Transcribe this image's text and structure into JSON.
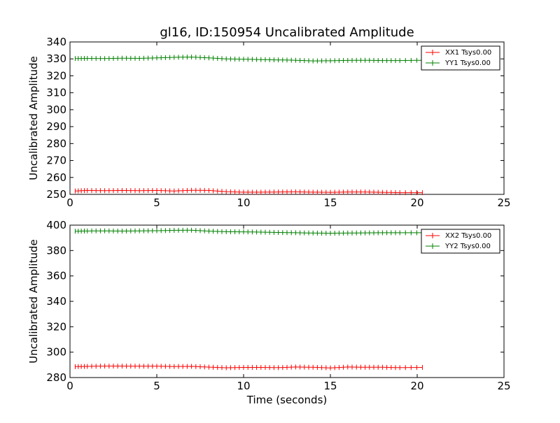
{
  "chart_data": [
    {
      "type": "line",
      "title": "gl16, ID:150954 Uncalibrated Amplitude",
      "xlabel": "",
      "ylabel": "Uncalibrated Amplitude",
      "xlim": [
        0,
        25
      ],
      "ylim": [
        250,
        340
      ],
      "xticks": [
        0,
        5,
        10,
        15,
        20,
        25
      ],
      "yticks": [
        250,
        260,
        270,
        280,
        290,
        300,
        310,
        320,
        330,
        340
      ],
      "legend_position": "top-right",
      "series": [
        {
          "name": "XX1 Tsys0.00",
          "color": "#ff0000",
          "x": [
            0.3,
            1.0,
            2.0,
            3.0,
            4.0,
            5.0,
            6.0,
            7.0,
            8.0,
            9.0,
            10.0,
            11.0,
            12.0,
            13.0,
            14.0,
            15.0,
            16.0,
            17.0,
            18.0,
            19.0,
            20.3
          ],
          "y": [
            252.0,
            252.3,
            252.2,
            252.3,
            252.2,
            252.3,
            252.0,
            252.4,
            252.3,
            251.6,
            251.3,
            251.3,
            251.4,
            251.5,
            251.3,
            251.2,
            251.4,
            251.4,
            251.2,
            251.0,
            251.0
          ]
        },
        {
          "name": "YY1 Tsys0.00",
          "color": "#008000",
          "x": [
            0.3,
            1.0,
            2.0,
            3.0,
            4.0,
            5.0,
            6.0,
            7.0,
            8.0,
            9.0,
            10.0,
            11.0,
            12.0,
            13.0,
            14.0,
            15.0,
            16.0,
            17.0,
            18.0,
            19.0,
            20.3
          ],
          "y": [
            330.2,
            330.3,
            330.2,
            330.4,
            330.3,
            330.6,
            330.9,
            331.1,
            330.6,
            330.0,
            329.8,
            329.6,
            329.4,
            329.2,
            328.8,
            328.9,
            329.1,
            329.2,
            329.0,
            329.0,
            329.2
          ]
        }
      ]
    },
    {
      "type": "line",
      "title": "",
      "xlabel": "Time (seconds)",
      "ylabel": "Uncalibrated Amplitude",
      "xlim": [
        0,
        25
      ],
      "ylim": [
        280,
        400
      ],
      "xticks": [
        0,
        5,
        10,
        15,
        20,
        25
      ],
      "yticks": [
        280,
        300,
        320,
        340,
        360,
        380,
        400
      ],
      "legend_position": "top-right",
      "series": [
        {
          "name": "XX2 Tsys0.00",
          "color": "#ff0000",
          "x": [
            0.3,
            1.0,
            2.0,
            3.0,
            4.0,
            5.0,
            6.0,
            7.0,
            8.0,
            9.0,
            10.0,
            11.0,
            12.0,
            13.0,
            14.0,
            15.0,
            16.0,
            17.0,
            18.0,
            19.0,
            20.3
          ],
          "y": [
            288.6,
            288.8,
            289.0,
            289.0,
            288.9,
            288.9,
            288.7,
            288.8,
            288.2,
            287.7,
            288.0,
            288.0,
            287.8,
            288.3,
            288.1,
            287.6,
            288.3,
            288.1,
            288.1,
            287.8,
            288.0
          ]
        },
        {
          "name": "YY2 Tsys0.00",
          "color": "#008000",
          "x": [
            0.3,
            1.0,
            2.0,
            3.0,
            4.0,
            5.0,
            6.0,
            7.0,
            8.0,
            9.0,
            10.0,
            11.0,
            12.0,
            13.0,
            14.0,
            15.0,
            16.0,
            17.0,
            18.0,
            19.0,
            20.3
          ],
          "y": [
            395.2,
            395.4,
            395.5,
            395.3,
            395.5,
            395.6,
            395.9,
            396.0,
            395.3,
            394.8,
            394.7,
            394.5,
            394.2,
            394.0,
            393.8,
            393.6,
            393.8,
            393.9,
            394.0,
            394.0,
            394.0
          ]
        }
      ]
    }
  ]
}
